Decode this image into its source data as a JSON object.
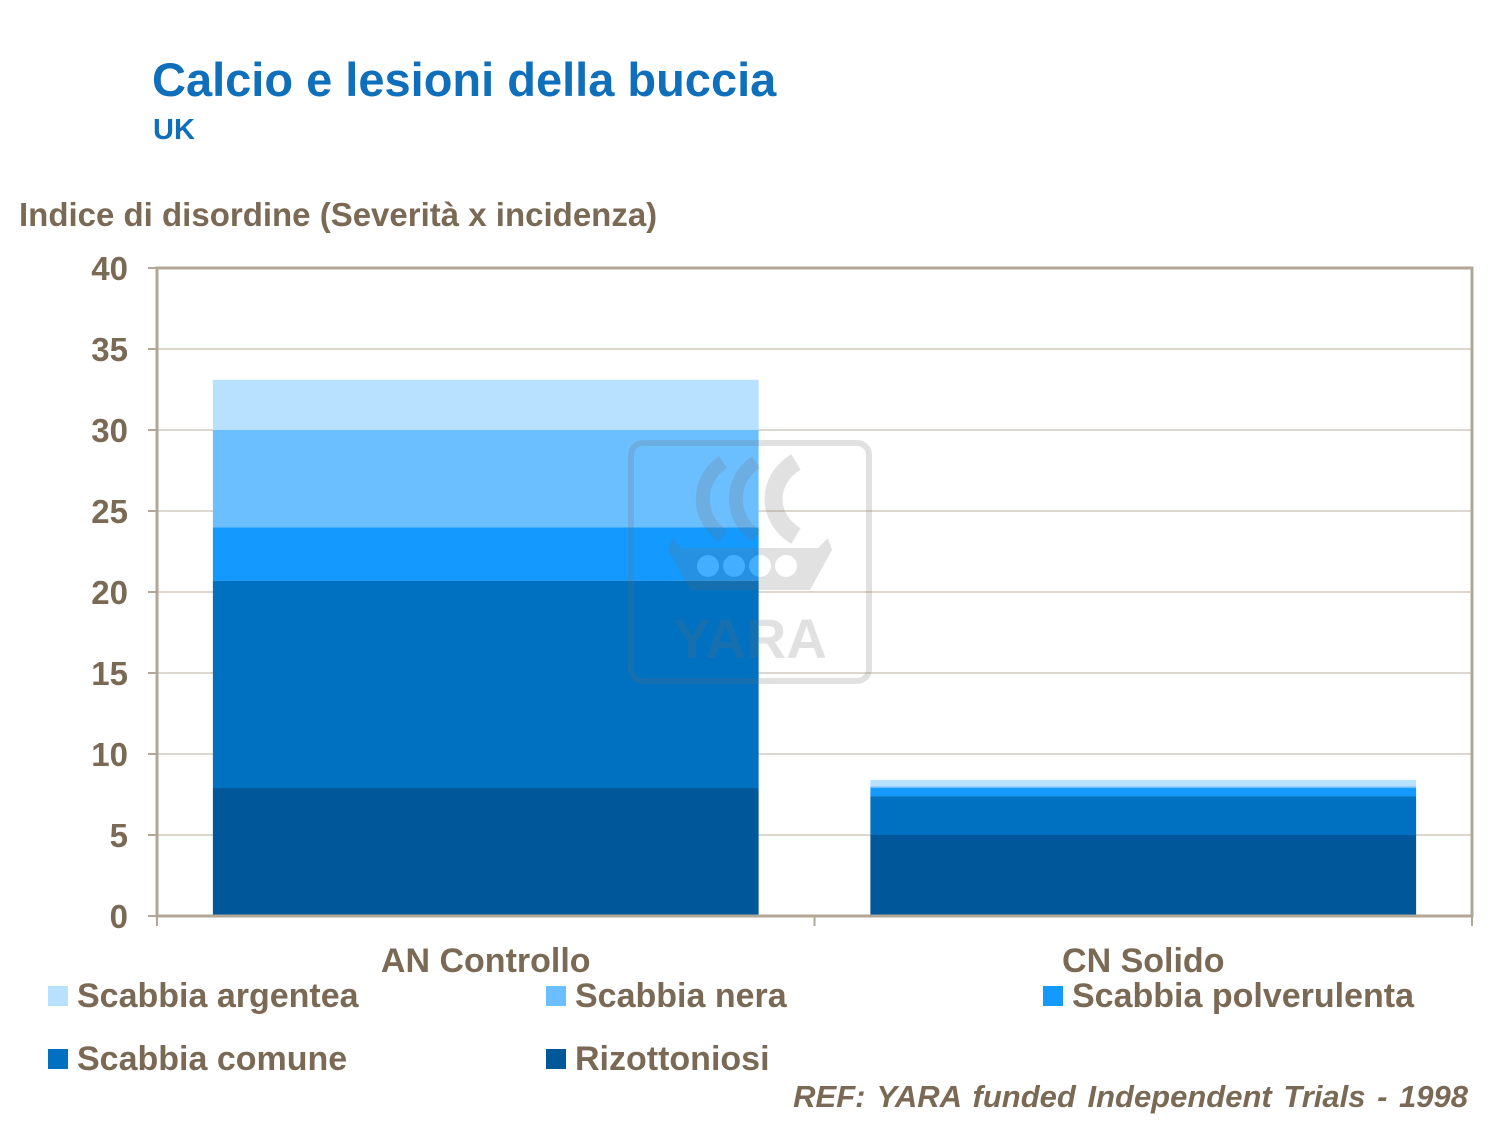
{
  "chart_data": {
    "type": "bar",
    "stacked": true,
    "title": "Calcio e lesioni della buccia",
    "subtitle": "UK",
    "ylabel": "Indice di disordine (Severità x incidenza)",
    "xlabel": "",
    "ylim": [
      0,
      40
    ],
    "yticks": [
      0,
      5,
      10,
      15,
      20,
      25,
      30,
      35,
      40
    ],
    "grid": true,
    "legend_position": "bottom",
    "categories": [
      "AN Controllo",
      "CN Solido"
    ],
    "series": [
      {
        "name": "Rizottoniosi",
        "color": "#00579a",
        "values": [
          7.9,
          5.0
        ]
      },
      {
        "name": "Scabbia comune",
        "color": "#0070c0",
        "values": [
          12.8,
          2.4
        ]
      },
      {
        "name": "Scabbia polverulenta",
        "color": "#1499ff",
        "values": [
          3.3,
          0.5
        ]
      },
      {
        "name": "Scabbia nera",
        "color": "#6cbfff",
        "values": [
          6.0,
          0.1
        ]
      },
      {
        "name": "Scabbia argentea",
        "color": "#b8e0ff",
        "values": [
          3.1,
          0.4
        ]
      }
    ],
    "legend_order": [
      "Scabbia argentea",
      "Scabbia nera",
      "Scabbia polverulenta",
      "Scabbia comune",
      "Rizottoniosi"
    ]
  },
  "watermark_text": "YARA",
  "reference": "REF: YARA funded Independent Trials - 1998",
  "colors": {
    "title": "#0f6fba",
    "text": "#7a6a55",
    "axis": "#b2a797",
    "grid": "#c9bfb2"
  }
}
